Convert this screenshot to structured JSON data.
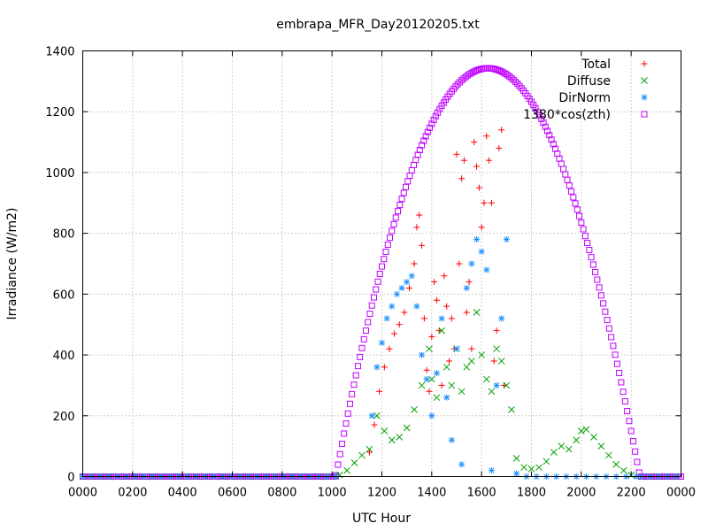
{
  "chart_data": {
    "type": "scatter",
    "title": "embrapa_MFR_Day20120205.txt",
    "xlabel": "UTC Hour",
    "ylabel": "Irradiance (W/m2)",
    "xlim": [
      0,
      24
    ],
    "ylim": [
      0,
      1400
    ],
    "x_tick_labels": [
      "0000",
      "0200",
      "0400",
      "0600",
      "0800",
      "1000",
      "1200",
      "1400",
      "1600",
      "1800",
      "2000",
      "2200",
      "0000"
    ],
    "x_ticks": [
      0,
      2,
      4,
      6,
      8,
      10,
      12,
      14,
      16,
      18,
      20,
      22,
      24
    ],
    "y_ticks": [
      0,
      200,
      400,
      600,
      800,
      1000,
      1200,
      1400
    ],
    "grid": true,
    "legend_position": "top-right",
    "series": [
      {
        "name": "Total",
        "marker": "plus",
        "color": "#ff0000",
        "x": [
          11.5,
          11.7,
          11.9,
          12.1,
          12.3,
          12.5,
          12.7,
          12.9,
          13.1,
          13.3,
          13.4,
          13.5,
          13.6,
          13.7,
          13.8,
          13.9,
          14.0,
          14.1,
          14.2,
          14.3,
          14.4,
          14.5,
          14.6,
          14.7,
          14.8,
          14.9,
          15.0,
          15.1,
          15.2,
          15.3,
          15.4,
          15.5,
          15.6,
          15.7,
          15.8,
          15.9,
          16.0,
          16.1,
          16.2,
          16.3,
          16.4,
          16.5,
          16.6,
          16.7,
          16.8,
          16.9
        ],
        "y": [
          80,
          170,
          280,
          360,
          420,
          470,
          500,
          540,
          620,
          700,
          820,
          860,
          760,
          520,
          350,
          280,
          460,
          640,
          580,
          480,
          300,
          660,
          560,
          380,
          520,
          420,
          1060,
          700,
          980,
          1040,
          540,
          640,
          420,
          1100,
          1020,
          950,
          820,
          900,
          1120,
          1040,
          900,
          380,
          480,
          1080,
          1140,
          300
        ]
      },
      {
        "name": "Diffuse",
        "marker": "x",
        "color": "#00a000",
        "x": [
          10.3,
          10.6,
          10.9,
          11.2,
          11.5,
          11.8,
          12.1,
          12.4,
          12.7,
          13.0,
          13.3,
          13.6,
          13.9,
          14.0,
          14.2,
          14.4,
          14.6,
          14.8,
          15.0,
          15.2,
          15.4,
          15.6,
          15.8,
          16.0,
          16.2,
          16.4,
          16.6,
          16.8,
          17.0,
          17.2,
          17.4,
          17.7,
          18.0,
          18.3,
          18.6,
          18.9,
          19.2,
          19.5,
          19.8,
          20.0,
          20.2,
          20.5,
          20.8,
          21.1,
          21.4,
          21.7,
          22.0
        ],
        "y": [
          5,
          20,
          45,
          70,
          90,
          200,
          150,
          120,
          130,
          160,
          220,
          300,
          420,
          320,
          260,
          480,
          360,
          300,
          420,
          280,
          360,
          380,
          540,
          400,
          320,
          280,
          420,
          380,
          300,
          220,
          60,
          30,
          25,
          30,
          50,
          80,
          100,
          90,
          120,
          150,
          155,
          130,
          100,
          70,
          40,
          20,
          5
        ]
      },
      {
        "name": "DirNorm",
        "marker": "star",
        "color": "#1e90ff",
        "x": [
          11.6,
          11.8,
          12.0,
          12.2,
          12.4,
          12.6,
          12.8,
          13.0,
          13.2,
          13.4,
          13.6,
          13.8,
          14.0,
          14.2,
          14.4,
          14.6,
          14.8,
          15.0,
          15.2,
          15.4,
          15.6,
          15.8,
          16.0,
          16.2,
          16.4,
          16.6,
          16.8,
          17.0,
          17.4,
          17.8,
          18.2,
          18.6,
          19.0,
          19.4,
          19.8,
          20.2,
          20.6,
          21.0,
          21.4,
          21.8,
          22.2
        ],
        "y": [
          200,
          360,
          440,
          520,
          560,
          600,
          620,
          640,
          660,
          560,
          400,
          320,
          200,
          340,
          520,
          260,
          120,
          420,
          40,
          620,
          700,
          780,
          740,
          680,
          20,
          300,
          520,
          780,
          10,
          0,
          0,
          0,
          0,
          0,
          0,
          0,
          0,
          0,
          0,
          0,
          0
        ]
      },
      {
        "name": "1380*cos(zth)",
        "marker": "square",
        "color": "#c000ff",
        "function": "envelope",
        "sunrise": 10.15,
        "sunset": 22.35,
        "peak_x": 16.25,
        "peak_y": 1343
      }
    ]
  }
}
